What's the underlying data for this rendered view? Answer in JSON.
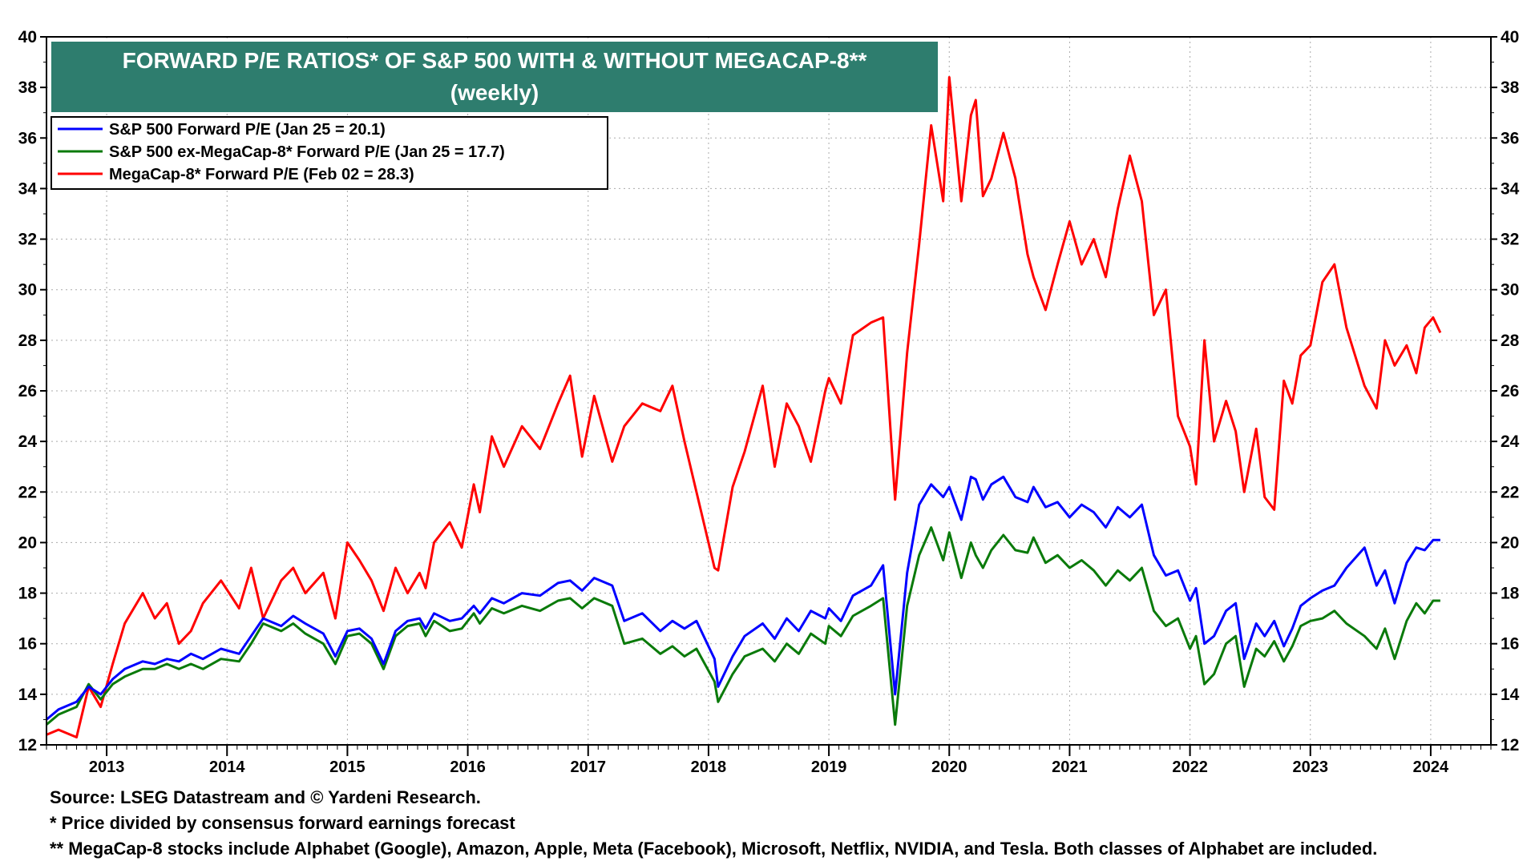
{
  "chart_data": {
    "type": "line",
    "title": "FORWARD P/E RATIOS* OF S&P 500 WITH & WITHOUT MEGACAP-8**",
    "subtitle": "(weekly)",
    "xlabel": "",
    "ylabel": "",
    "x_range": [
      2012.5,
      2024.5
    ],
    "ylim": [
      12,
      40
    ],
    "y_ticks": [
      12,
      14,
      16,
      18,
      20,
      22,
      24,
      26,
      28,
      30,
      32,
      34,
      36,
      38,
      40
    ],
    "x_tick_labels": [
      "2013",
      "2014",
      "2015",
      "2016",
      "2017",
      "2018",
      "2019",
      "2020",
      "2021",
      "2022",
      "2023",
      "2024"
    ],
    "grid": true,
    "legend_position": "top-left",
    "series": [
      {
        "name": "S&P 500 Forward P/E (Jan 25 = 20.1)",
        "color": "#0000ff",
        "x": [
          2012.5,
          2012.6,
          2012.75,
          2012.85,
          2012.95,
          2013.05,
          2013.15,
          2013.3,
          2013.4,
          2013.5,
          2013.6,
          2013.7,
          2013.8,
          2013.95,
          2014.1,
          2014.2,
          2014.3,
          2014.45,
          2014.55,
          2014.65,
          2014.8,
          2014.9,
          2015.0,
          2015.1,
          2015.2,
          2015.3,
          2015.4,
          2015.5,
          2015.6,
          2015.65,
          2015.72,
          2015.85,
          2015.95,
          2016.05,
          2016.1,
          2016.2,
          2016.3,
          2016.45,
          2016.6,
          2016.75,
          2016.85,
          2016.95,
          2017.05,
          2017.2,
          2017.3,
          2017.45,
          2017.6,
          2017.7,
          2017.8,
          2017.9,
          2018.05,
          2018.08,
          2018.2,
          2018.3,
          2018.45,
          2018.55,
          2018.65,
          2018.75,
          2018.85,
          2018.97,
          2019.0,
          2019.1,
          2019.2,
          2019.35,
          2019.45,
          2019.55,
          2019.65,
          2019.75,
          2019.85,
          2019.95,
          2020.0,
          2020.1,
          2020.18,
          2020.22,
          2020.28,
          2020.35,
          2020.45,
          2020.55,
          2020.65,
          2020.7,
          2020.8,
          2020.9,
          2021.0,
          2021.1,
          2021.2,
          2021.3,
          2021.4,
          2021.5,
          2021.6,
          2021.7,
          2021.8,
          2021.9,
          2022.0,
          2022.05,
          2022.12,
          2022.2,
          2022.3,
          2022.38,
          2022.45,
          2022.55,
          2022.62,
          2022.7,
          2022.78,
          2022.85,
          2022.92,
          2023.0,
          2023.1,
          2023.2,
          2023.3,
          2023.45,
          2023.55,
          2023.62,
          2023.7,
          2023.8,
          2023.88,
          2023.95,
          2024.02,
          2024.08
        ],
        "y": [
          13.0,
          13.4,
          13.7,
          14.3,
          14.0,
          14.6,
          15.0,
          15.3,
          15.2,
          15.4,
          15.3,
          15.6,
          15.4,
          15.8,
          15.6,
          16.3,
          17.0,
          16.7,
          17.1,
          16.8,
          16.4,
          15.5,
          16.5,
          16.6,
          16.2,
          15.2,
          16.5,
          16.9,
          17.0,
          16.6,
          17.2,
          16.9,
          17.0,
          17.5,
          17.2,
          17.8,
          17.6,
          18.0,
          17.9,
          18.4,
          18.5,
          18.1,
          18.6,
          18.3,
          16.9,
          17.2,
          16.5,
          16.9,
          16.6,
          16.9,
          15.4,
          14.3,
          15.5,
          16.3,
          16.8,
          16.2,
          17.0,
          16.5,
          17.3,
          17.0,
          17.4,
          16.9,
          17.9,
          18.3,
          19.1,
          14.0,
          18.8,
          21.5,
          22.3,
          21.8,
          22.2,
          20.9,
          22.6,
          22.5,
          21.7,
          22.3,
          22.6,
          21.8,
          21.6,
          22.2,
          21.4,
          21.6,
          21.0,
          21.5,
          21.2,
          20.6,
          21.4,
          21.0,
          21.5,
          19.5,
          18.7,
          18.9,
          17.7,
          18.2,
          16.0,
          16.3,
          17.3,
          17.6,
          15.4,
          16.8,
          16.3,
          16.9,
          15.9,
          16.6,
          17.5,
          17.8,
          18.1,
          18.3,
          19.0,
          19.8,
          18.3,
          18.9,
          17.6,
          19.2,
          19.8,
          19.7,
          20.1,
          20.1
        ],
        "last_label": "Jan 25 = 20.1"
      },
      {
        "name": "S&P 500 ex-MegaCap-8* Forward P/E (Jan 25 = 17.7)",
        "color": "#0a7a0a",
        "x": [
          2012.5,
          2012.6,
          2012.75,
          2012.85,
          2012.95,
          2013.05,
          2013.15,
          2013.3,
          2013.4,
          2013.5,
          2013.6,
          2013.7,
          2013.8,
          2013.95,
          2014.1,
          2014.2,
          2014.3,
          2014.45,
          2014.55,
          2014.65,
          2014.8,
          2014.9,
          2015.0,
          2015.1,
          2015.2,
          2015.3,
          2015.4,
          2015.5,
          2015.6,
          2015.65,
          2015.72,
          2015.85,
          2015.95,
          2016.05,
          2016.1,
          2016.2,
          2016.3,
          2016.45,
          2016.6,
          2016.75,
          2016.85,
          2016.95,
          2017.05,
          2017.2,
          2017.3,
          2017.45,
          2017.6,
          2017.7,
          2017.8,
          2017.9,
          2018.05,
          2018.08,
          2018.2,
          2018.3,
          2018.45,
          2018.55,
          2018.65,
          2018.75,
          2018.85,
          2018.97,
          2019.0,
          2019.1,
          2019.2,
          2019.35,
          2019.45,
          2019.55,
          2019.65,
          2019.75,
          2019.85,
          2019.95,
          2020.0,
          2020.1,
          2020.18,
          2020.22,
          2020.28,
          2020.35,
          2020.45,
          2020.55,
          2020.65,
          2020.7,
          2020.8,
          2020.9,
          2021.0,
          2021.1,
          2021.2,
          2021.3,
          2021.4,
          2021.5,
          2021.6,
          2021.7,
          2021.8,
          2021.9,
          2022.0,
          2022.05,
          2022.12,
          2022.2,
          2022.3,
          2022.38,
          2022.45,
          2022.55,
          2022.62,
          2022.7,
          2022.78,
          2022.85,
          2022.92,
          2023.0,
          2023.1,
          2023.2,
          2023.3,
          2023.45,
          2023.55,
          2023.62,
          2023.7,
          2023.8,
          2023.88,
          2023.95,
          2024.02,
          2024.08
        ],
        "y": [
          12.8,
          13.2,
          13.5,
          14.4,
          13.8,
          14.4,
          14.7,
          15.0,
          15.0,
          15.2,
          15.0,
          15.2,
          15.0,
          15.4,
          15.3,
          16.0,
          16.8,
          16.5,
          16.8,
          16.4,
          16.0,
          15.2,
          16.3,
          16.4,
          16.0,
          15.0,
          16.3,
          16.7,
          16.8,
          16.3,
          16.9,
          16.5,
          16.6,
          17.2,
          16.8,
          17.4,
          17.2,
          17.5,
          17.3,
          17.7,
          17.8,
          17.4,
          17.8,
          17.5,
          16.0,
          16.2,
          15.6,
          15.9,
          15.5,
          15.8,
          14.5,
          13.7,
          14.8,
          15.5,
          15.8,
          15.3,
          16.0,
          15.6,
          16.4,
          16.0,
          16.7,
          16.3,
          17.1,
          17.5,
          17.8,
          12.8,
          17.5,
          19.5,
          20.6,
          19.3,
          20.4,
          18.6,
          20.0,
          19.5,
          19.0,
          19.7,
          20.3,
          19.7,
          19.6,
          20.2,
          19.2,
          19.5,
          19.0,
          19.3,
          18.9,
          18.3,
          18.9,
          18.5,
          19.0,
          17.3,
          16.7,
          17.0,
          15.8,
          16.3,
          14.4,
          14.8,
          16.0,
          16.3,
          14.3,
          15.8,
          15.5,
          16.1,
          15.3,
          15.9,
          16.7,
          16.9,
          17.0,
          17.3,
          16.8,
          16.3,
          15.8,
          16.6,
          15.4,
          16.9,
          17.6,
          17.2,
          17.7,
          17.7
        ],
        "last_label": "Jan 25 = 17.7"
      },
      {
        "name": "MegaCap-8* Forward P/E (Feb 02 = 28.3)",
        "color": "#ff0000",
        "x": [
          2012.5,
          2012.6,
          2012.75,
          2012.85,
          2012.95,
          2013.05,
          2013.15,
          2013.3,
          2013.4,
          2013.5,
          2013.6,
          2013.7,
          2013.8,
          2013.95,
          2014.1,
          2014.2,
          2014.3,
          2014.45,
          2014.55,
          2014.65,
          2014.8,
          2014.9,
          2015.0,
          2015.1,
          2015.2,
          2015.3,
          2015.4,
          2015.5,
          2015.6,
          2015.65,
          2015.72,
          2015.85,
          2015.95,
          2016.05,
          2016.1,
          2016.2,
          2016.3,
          2016.45,
          2016.6,
          2016.75,
          2016.85,
          2016.95,
          2017.05,
          2017.2,
          2017.3,
          2017.45,
          2017.6,
          2017.7,
          2017.8,
          2017.9,
          2018.05,
          2018.08,
          2018.2,
          2018.3,
          2018.45,
          2018.55,
          2018.65,
          2018.75,
          2018.85,
          2018.97,
          2019.0,
          2019.1,
          2019.2,
          2019.35,
          2019.45,
          2019.55,
          2019.65,
          2019.75,
          2019.85,
          2019.95,
          2020.0,
          2020.1,
          2020.18,
          2020.22,
          2020.28,
          2020.35,
          2020.45,
          2020.55,
          2020.65,
          2020.7,
          2020.8,
          2020.9,
          2021.0,
          2021.1,
          2021.2,
          2021.3,
          2021.4,
          2021.5,
          2021.6,
          2021.7,
          2021.8,
          2021.9,
          2022.0,
          2022.05,
          2022.12,
          2022.2,
          2022.3,
          2022.38,
          2022.45,
          2022.55,
          2022.62,
          2022.7,
          2022.78,
          2022.85,
          2022.92,
          2023.0,
          2023.1,
          2023.2,
          2023.3,
          2023.45,
          2023.55,
          2023.62,
          2023.7,
          2023.8,
          2023.88,
          2023.95,
          2024.02,
          2024.08
        ],
        "y": [
          12.4,
          12.6,
          12.3,
          14.3,
          13.5,
          15.2,
          16.8,
          18.0,
          17.0,
          17.6,
          16.0,
          16.5,
          17.6,
          18.5,
          17.4,
          19.0,
          17.0,
          18.5,
          19.0,
          18.0,
          18.8,
          17.0,
          20.0,
          19.3,
          18.5,
          17.3,
          19.0,
          18.0,
          18.8,
          18.2,
          20.0,
          20.8,
          19.8,
          22.3,
          21.2,
          24.2,
          23.0,
          24.6,
          23.7,
          25.5,
          26.6,
          23.4,
          25.8,
          23.2,
          24.6,
          25.5,
          25.2,
          26.2,
          24.0,
          22.0,
          19.0,
          18.9,
          22.2,
          23.6,
          26.2,
          23.0,
          25.5,
          24.6,
          23.2,
          26.0,
          26.5,
          25.5,
          28.2,
          28.7,
          28.9,
          21.7,
          27.5,
          31.8,
          36.5,
          33.5,
          38.4,
          33.5,
          36.9,
          37.5,
          33.7,
          34.4,
          36.2,
          34.4,
          31.4,
          30.5,
          29.2,
          31.0,
          32.7,
          31.0,
          32.0,
          30.5,
          33.2,
          35.3,
          33.5,
          29.0,
          30.0,
          25.0,
          23.8,
          22.3,
          28.0,
          24.0,
          25.6,
          24.4,
          22.0,
          24.5,
          21.8,
          21.3,
          26.4,
          25.5,
          27.4,
          27.8,
          30.3,
          31.0,
          28.5,
          26.2,
          25.3,
          28.0,
          27.0,
          27.8,
          26.7,
          28.5,
          28.9,
          28.3
        ],
        "last_label": "Feb 02 = 28.3"
      }
    ]
  },
  "footnotes": {
    "source": "Source: LSEG Datastream and © Yardeni Research.",
    "note1": "* Price divided by consensus forward earnings forecast",
    "note2": "** MegaCap-8 stocks include Alphabet (Google), Amazon, Apple, Meta (Facebook), Microsoft, Netflix, NVIDIA, and Tesla. Both classes of Alphabet are included."
  },
  "colors": {
    "title_background": "#2e7d6e",
    "title_text": "#ffffff",
    "grid": "#aaaaaa",
    "frame": "#000000"
  }
}
